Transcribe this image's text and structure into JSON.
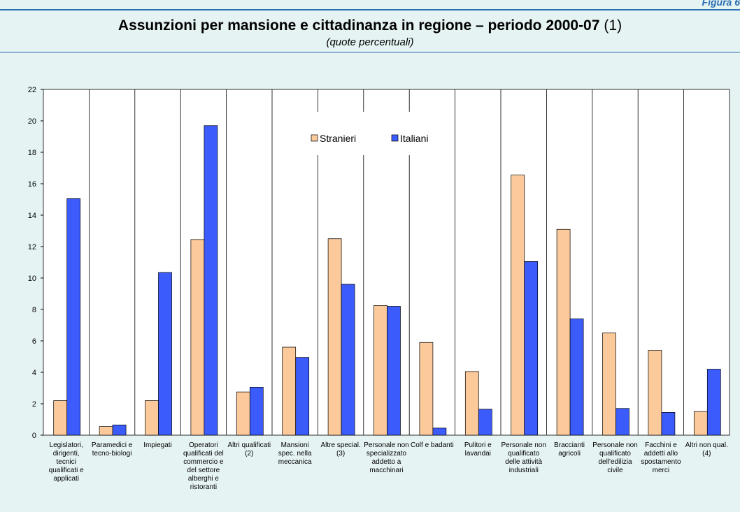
{
  "figure_label": "Figura 6",
  "chart_data": {
    "type": "bar",
    "title": "Assunzioni per mansione e cittadinanza in regione – periodo 2000-07",
    "title_note": "(1)",
    "subtitle": "(quote percentuali)",
    "categories": [
      "Legislatori, dirigenti, tecnici qualificati e applicati",
      "Paramedici e tecno-biologi",
      "Impiegati",
      "Operatori qualificati del commercio e del settore alberghi e ristoranti",
      "Altri qualificati (2)",
      "Mansioni spec. nella meccanica",
      "Altre special. (3)",
      "Personale non specializzato addetto a macchinari",
      "Colf e badanti",
      "Pulitori e lavandai",
      "Personale non qualificato delle attività industriali",
      "Braccianti agricoli",
      "Personale non qualificato dell'edilizia civile",
      "Facchini e addetti allo spostamento merci",
      "Altri non qual. (4)"
    ],
    "series": [
      {
        "name": "Stranieri",
        "color": "#fbc99a",
        "values": [
          2.2,
          0.55,
          2.2,
          12.45,
          2.75,
          5.6,
          12.5,
          8.25,
          5.9,
          4.05,
          16.55,
          13.1,
          6.5,
          5.4,
          1.5
        ]
      },
      {
        "name": "Italiani",
        "color": "#3b5bfb",
        "values": [
          15.05,
          0.65,
          10.35,
          19.7,
          3.05,
          4.95,
          9.6,
          8.2,
          0.45,
          1.65,
          11.05,
          7.4,
          1.7,
          1.45,
          4.2
        ]
      }
    ],
    "ylim": [
      0,
      22
    ],
    "yticks": [
      0,
      2,
      4,
      6,
      8,
      10,
      12,
      14,
      16,
      18,
      20,
      22
    ],
    "legend": "top-center"
  }
}
